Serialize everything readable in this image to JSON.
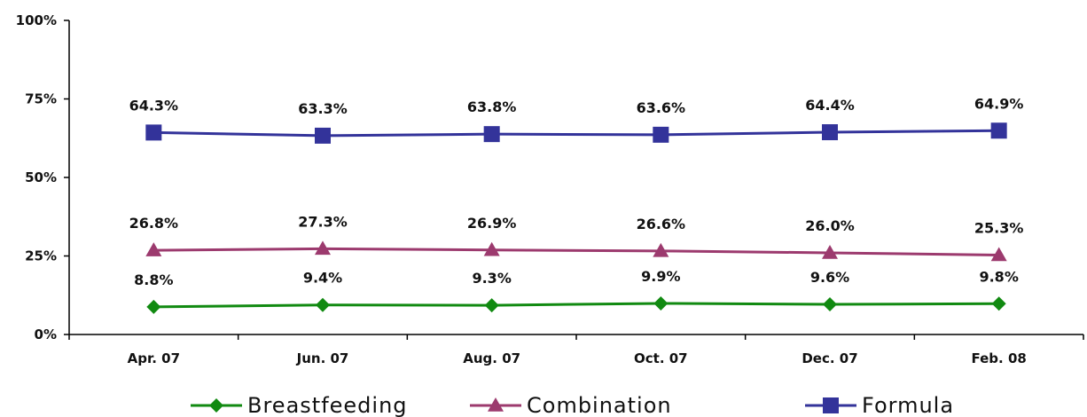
{
  "chart_data": {
    "type": "line",
    "title": "",
    "xlabel": "",
    "ylabel": "",
    "categories": [
      "Apr. 07",
      "Jun. 07",
      "Aug. 07",
      "Oct. 07",
      "Dec. 07",
      "Feb. 08"
    ],
    "ylim": [
      0,
      100
    ],
    "yticks": [
      0,
      25,
      50,
      75,
      100
    ],
    "ytick_labels": [
      "0%",
      "25%",
      "50%",
      "75%",
      "100%"
    ],
    "grid": false,
    "legend_position": "bottom",
    "series": [
      {
        "name": "Breastfeeding",
        "color": "#118a11",
        "marker": "diamond",
        "values": [
          8.8,
          9.4,
          9.3,
          9.9,
          9.6,
          9.8
        ],
        "labels": [
          "8.8%",
          "9.4%",
          "9.3%",
          "9.9%",
          "9.6%",
          "9.8%"
        ]
      },
      {
        "name": "Combination",
        "color": "#9c3a6e",
        "marker": "triangle",
        "values": [
          26.8,
          27.3,
          26.9,
          26.6,
          26.0,
          25.3
        ],
        "labels": [
          "26.8%",
          "27.3%",
          "26.9%",
          "26.6%",
          "26.0%",
          "25.3%"
        ]
      },
      {
        "name": "Formula",
        "color": "#33339a",
        "marker": "square",
        "values": [
          64.3,
          63.3,
          63.8,
          63.6,
          64.4,
          64.9
        ],
        "labels": [
          "64.3%",
          "63.3%",
          "63.8%",
          "63.6%",
          "64.4%",
          "64.9%"
        ]
      }
    ]
  }
}
